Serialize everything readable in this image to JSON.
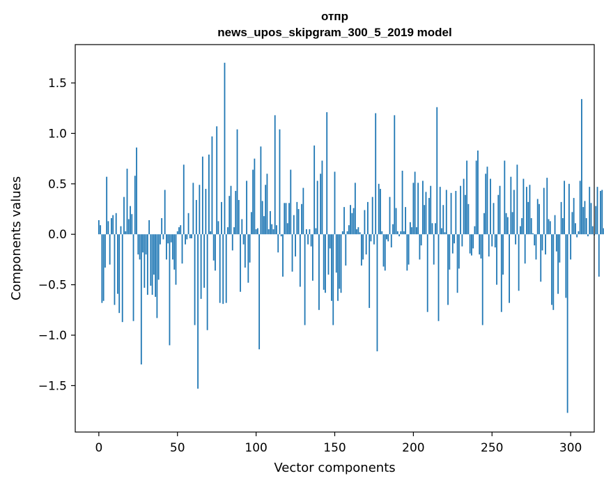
{
  "chart_data": {
    "type": "bar",
    "title": "отпр",
    "subtitle": "news_upos_skipgram_300_5_2019 model",
    "xlabel": "Vector components",
    "ylabel": "Components values",
    "xlim": [
      -15,
      315
    ],
    "ylim": [
      -1.96,
      1.88
    ],
    "x_ticks": [
      0,
      50,
      100,
      150,
      200,
      250,
      300
    ],
    "x_tick_labels": [
      "0",
      "50",
      "100",
      "150",
      "200",
      "250",
      "300"
    ],
    "y_ticks": [
      -1.5,
      -1.0,
      -0.5,
      0.0,
      0.5,
      1.0,
      1.5
    ],
    "y_tick_labels": [
      "−1.5",
      "−1.0",
      "−0.5",
      "0.0",
      "0.5",
      "1.0",
      "1.5"
    ],
    "bar_color": "#1f77b4",
    "series": [
      {
        "name": "отпр",
        "values": [
          0.14,
          0.09,
          -0.68,
          -0.66,
          -0.33,
          0.57,
          0.13,
          -0.3,
          0.16,
          0.19,
          -0.7,
          0.21,
          -0.59,
          -0.78,
          0.08,
          -0.87,
          0.37,
          0.03,
          0.65,
          0.15,
          0.28,
          0.2,
          -0.86,
          0.58,
          0.86,
          -0.2,
          -0.25,
          -1.29,
          -0.18,
          -0.53,
          -0.2,
          -0.6,
          0.14,
          -0.51,
          -0.6,
          -0.4,
          -0.62,
          -0.83,
          -0.45,
          -0.1,
          0.16,
          -0.05,
          0.44,
          -0.25,
          -0.09,
          -1.1,
          -0.08,
          -0.25,
          -0.35,
          -0.5,
          0.03,
          0.07,
          0.09,
          -0.29,
          0.69,
          -0.1,
          -0.05,
          0.21,
          -0.04,
          -0.04,
          0.51,
          -0.9,
          0.34,
          -1.53,
          0.49,
          -0.64,
          0.77,
          -0.53,
          0.45,
          -0.95,
          0.79,
          0.03,
          0.97,
          -0.26,
          -0.36,
          1.07,
          0.13,
          -0.68,
          0.32,
          -0.69,
          1.7,
          -0.68,
          0.07,
          0.38,
          0.48,
          -0.16,
          0.07,
          0.43,
          1.04,
          0.34,
          -0.57,
          0.15,
          -0.1,
          -0.33,
          0.53,
          -0.48,
          -0.28,
          0.22,
          0.64,
          0.75,
          0.05,
          0.06,
          -1.14,
          0.87,
          0.33,
          0.18,
          0.49,
          0.6,
          0.05,
          0.23,
          0.1,
          0.05,
          1.18,
          0.09,
          -0.18,
          1.04,
          -0.02,
          -0.42,
          0.31,
          0.31,
          0.11,
          0.31,
          0.64,
          -0.37,
          0.19,
          -0.22,
          0.32,
          0.25,
          -0.52,
          0.3,
          0.46,
          -0.9,
          0.05,
          -0.1,
          0.05,
          -0.12,
          -0.46,
          0.88,
          0.06,
          0.53,
          -0.75,
          0.6,
          0.73,
          -0.55,
          -0.58,
          1.21,
          -0.4,
          -0.14,
          -0.66,
          -0.9,
          0.62,
          -0.38,
          -0.66,
          -0.54,
          -0.58,
          0.03,
          0.27,
          -0.31,
          0.03,
          0.09,
          0.29,
          0.21,
          0.26,
          0.51,
          0.05,
          0.07,
          0.02,
          -0.31,
          -0.25,
          0.24,
          -0.2,
          0.32,
          -0.73,
          -0.07,
          0.37,
          -0.1,
          1.2,
          -1.16,
          0.5,
          0.45,
          0.03,
          -0.32,
          -0.36,
          -0.05,
          -0.07,
          0.37,
          -0.13,
          0.1,
          1.18,
          0.26,
          0.03,
          -0.02,
          0.03,
          0.63,
          0.03,
          0.27,
          -0.36,
          -0.3,
          0.12,
          0.07,
          0.51,
          0.62,
          0.07,
          0.51,
          -0.25,
          -0.11,
          0.53,
          0.29,
          0.42,
          -0.77,
          0.36,
          0.48,
          0.11,
          -0.3,
          0.11,
          1.26,
          -0.86,
          0.47,
          0.06,
          0.29,
          0.02,
          0.44,
          -0.7,
          -0.35,
          0.41,
          -0.19,
          -0.09,
          0.43,
          -0.58,
          -0.34,
          0.48,
          -0.12,
          0.55,
          0.39,
          0.73,
          0.3,
          -0.19,
          -0.21,
          -0.14,
          0.08,
          0.73,
          0.83,
          -0.2,
          -0.24,
          -0.9,
          0.21,
          0.6,
          0.67,
          -0.22,
          0.55,
          -0.12,
          0.31,
          -0.13,
          -0.5,
          0.39,
          0.48,
          -0.77,
          -0.4,
          0.73,
          0.21,
          0.17,
          -0.68,
          0.57,
          0.22,
          0.44,
          -0.1,
          0.69,
          -0.56,
          0.08,
          0.16,
          0.55,
          -0.29,
          0.47,
          0.32,
          0.49,
          0.16,
          0.01,
          -0.11,
          -0.25,
          0.35,
          0.3,
          -0.47,
          -0.16,
          0.46,
          -0.2,
          0.56,
          0.15,
          0.13,
          -0.7,
          -0.75,
          0.19,
          -0.17,
          -0.59,
          -0.28,
          0.32,
          0.16,
          0.53,
          -0.63,
          -1.77,
          0.5,
          -0.25,
          0.22,
          0.36,
          0.11,
          -0.03,
          0.03,
          0.53,
          1.34,
          0.27,
          0.33,
          0.16,
          -0.02,
          0.47,
          0.31,
          0.08,
          -0.01,
          0.28,
          0.47,
          -0.42,
          0.43,
          0.44,
          0.06
        ]
      }
    ]
  }
}
